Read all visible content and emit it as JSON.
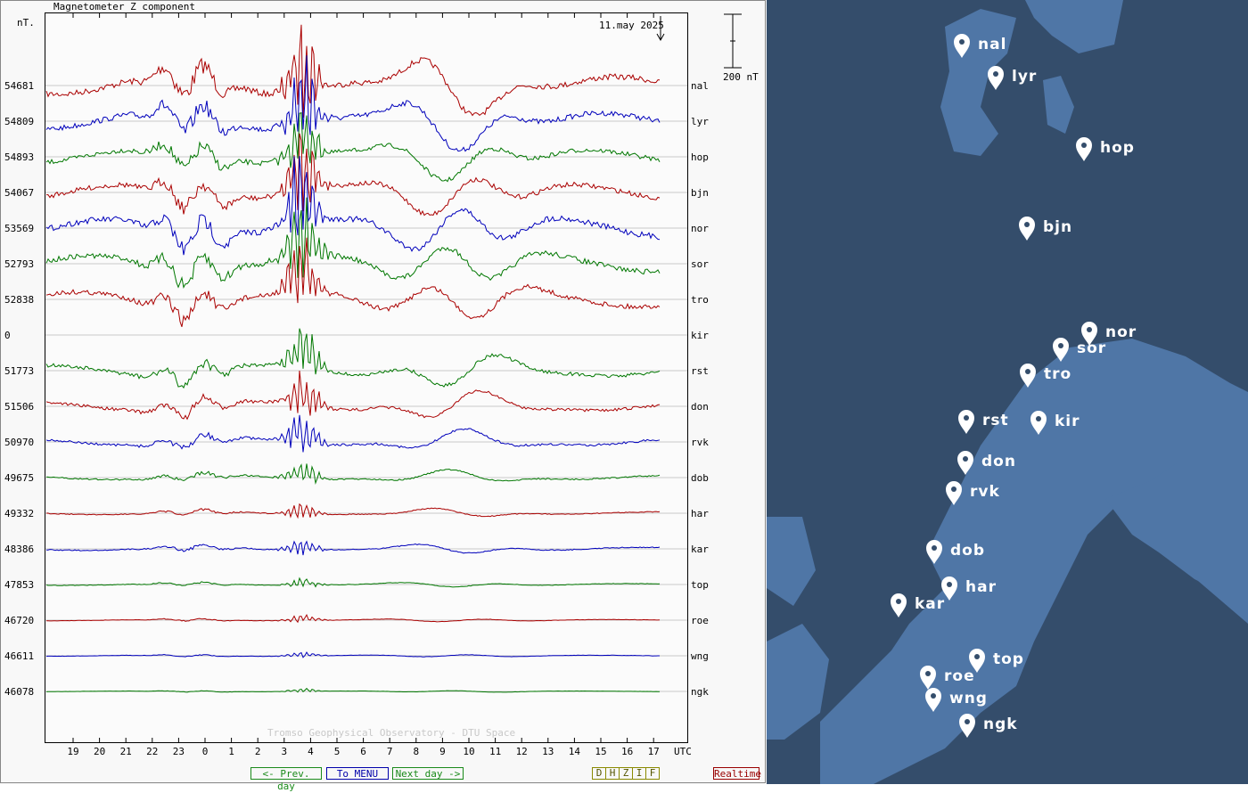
{
  "chart_data": {
    "type": "line",
    "title": "Magnetometer Z component",
    "ylabel": "nT.",
    "date_label": "11.may 2025",
    "scale_label": "200 nT",
    "xlabel": "UTC",
    "x_tick_labels": [
      "19",
      "20",
      "21",
      "22",
      "23",
      "0",
      "1",
      "2",
      "3",
      "4",
      "5",
      "6",
      "7",
      "8",
      "9",
      "10",
      "11",
      "12",
      "13",
      "14",
      "15",
      "16",
      "17"
    ],
    "x_range_hours": [
      18,
      41
    ],
    "watermark": "Tromso Geophysical Observatory - DTU Space",
    "series": [
      {
        "name": "nal",
        "baseline": "54681",
        "color": "#aa0000",
        "amp": 2.6
      },
      {
        "name": "lyr",
        "baseline": "54809",
        "color": "#0000bb",
        "amp": 2.4
      },
      {
        "name": "hop",
        "baseline": "54893",
        "color": "#007700",
        "amp": 2.0
      },
      {
        "name": "bjn",
        "baseline": "54067",
        "color": "#aa0000",
        "amp": 2.2
      },
      {
        "name": "nor",
        "baseline": "53569",
        "color": "#0000bb",
        "amp": 2.6
      },
      {
        "name": "sor",
        "baseline": "52793",
        "color": "#007700",
        "amp": 2.4
      },
      {
        "name": "tro",
        "baseline": "52838",
        "color": "#aa0000",
        "amp": 2.2
      },
      {
        "name": "kir",
        "baseline": "0",
        "color": "#aa0000",
        "amp": 0
      },
      {
        "name": "rst",
        "baseline": "51773",
        "color": "#007700",
        "amp": 1.6
      },
      {
        "name": "don",
        "baseline": "51506",
        "color": "#aa0000",
        "amp": 1.3
      },
      {
        "name": "rvk",
        "baseline": "50970",
        "color": "#0000bb",
        "amp": 1.0
      },
      {
        "name": "dob",
        "baseline": "49675",
        "color": "#007700",
        "amp": 0.6
      },
      {
        "name": "har",
        "baseline": "49332",
        "color": "#aa0000",
        "amp": 0.4
      },
      {
        "name": "kar",
        "baseline": "48386",
        "color": "#0000bb",
        "amp": 0.45
      },
      {
        "name": "top",
        "baseline": "47853",
        "color": "#007700",
        "amp": 0.25
      },
      {
        "name": "roe",
        "baseline": "46720",
        "color": "#aa0000",
        "amp": 0.18
      },
      {
        "name": "wng",
        "baseline": "46611",
        "color": "#0000bb",
        "amp": 0.15
      },
      {
        "name": "ngk",
        "baseline": "46078",
        "color": "#007700",
        "amp": 0.1
      }
    ]
  },
  "nav": {
    "prev": "<- Prev. day",
    "menu": "To MENU",
    "next": "Next day ->",
    "components": [
      "D",
      "H",
      "Z",
      "I",
      "F"
    ],
    "realtime": "Realtime"
  },
  "map": {
    "background": "#344d6b",
    "land": "#4f76a6",
    "stations": [
      "nal",
      "lyr",
      "hop",
      "bjn",
      "nor",
      "sor",
      "tro",
      "rst",
      "kir",
      "don",
      "rvk",
      "dob",
      "har",
      "kar",
      "top",
      "roe",
      "wng",
      "ngk"
    ]
  }
}
